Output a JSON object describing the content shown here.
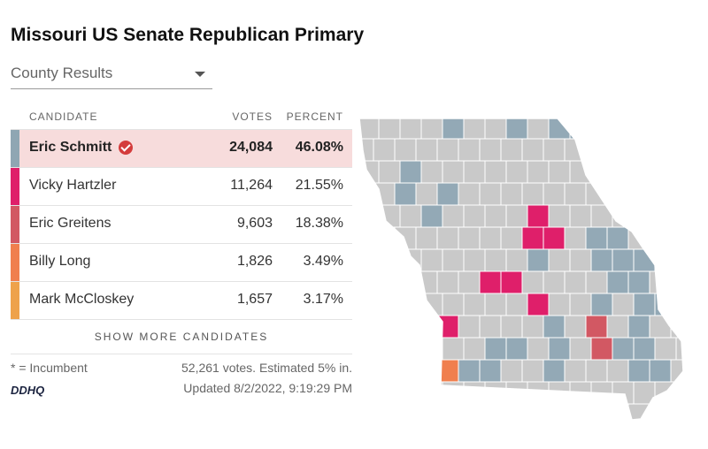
{
  "title": "Missouri US Senate Republican Primary",
  "dropdown": {
    "selected": "County Results"
  },
  "table": {
    "headers": {
      "candidate": "CANDIDATE",
      "votes": "VOTES",
      "percent": "PERCENT"
    },
    "rows": [
      {
        "name": "Eric Schmitt",
        "votes": "24,084",
        "percent": "46.08%",
        "color": "#8fa6b3",
        "winner": true
      },
      {
        "name": "Vicky Hartzler",
        "votes": "11,264",
        "percent": "21.55%",
        "color": "#df1f6a"
      },
      {
        "name": "Eric Greitens",
        "votes": "9,603",
        "percent": "18.38%",
        "color": "#d25863"
      },
      {
        "name": "Billy Long",
        "votes": "1,826",
        "percent": "3.49%",
        "color": "#f07f4e"
      },
      {
        "name": "Mark McCloskey",
        "votes": "1,657",
        "percent": "3.17%",
        "color": "#eea24b"
      }
    ],
    "show_more": "SHOW MORE CANDIDATES"
  },
  "footer": {
    "incumbent_note": "* = Incumbent",
    "votes_summary": "52,261 votes. Estimated 5% in.",
    "updated": "Updated 8/2/2022, 9:19:29 PM",
    "logo": "DDHQ"
  },
  "map_colors": {
    "no_result": "#c9c9c9",
    "schmitt": "#93a9b6",
    "hartzler": "#df1f6a",
    "greitens": "#d25863",
    "long": "#f07f4e",
    "border": "#ffffff"
  }
}
